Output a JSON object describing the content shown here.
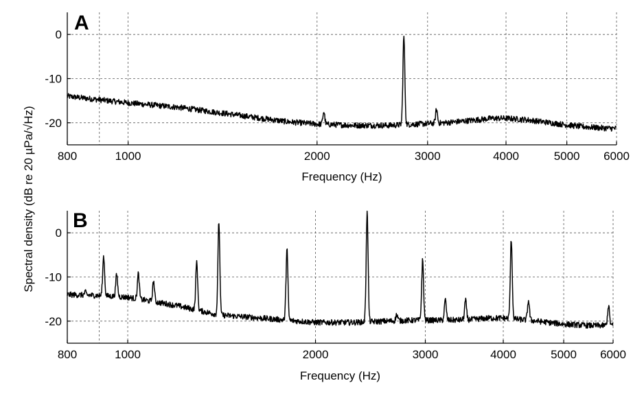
{
  "figure": {
    "ylabel": "Spectral density (dB re 20 µPa/√Hz)"
  },
  "chart_data": [
    {
      "type": "line",
      "panel": "A",
      "xlabel": "Frequency (Hz)",
      "x_scale": "log",
      "xlim": [
        800,
        6000
      ],
      "ylim": [
        -25,
        5
      ],
      "x_ticks": [
        800,
        1000,
        2000,
        3000,
        4000,
        5000,
        6000
      ],
      "x_tick_labels": [
        "800",
        "1000",
        "2000",
        "3000",
        "4000",
        "5000",
        "6000"
      ],
      "y_ticks": [
        0,
        -10,
        -20
      ],
      "y_tick_labels": [
        "0",
        "-10",
        "-20"
      ],
      "x_grid": [
        900,
        1000,
        2000,
        3000,
        4000,
        5000,
        6000
      ],
      "y_grid": [
        0,
        -10,
        -20
      ],
      "grid": true,
      "series": [
        {
          "baseline": {
            "x": [
              800,
              900,
              1000,
              1200,
              1500,
              1800,
              2000,
              2300,
              2600,
              2900,
              3200,
              3500,
              3800,
              4000,
              4300,
              4700,
              5200,
              5700,
              6000
            ],
            "y": [
              -14,
              -14.8,
              -15.5,
              -16.5,
              -18.3,
              -19.8,
              -20.3,
              -20.6,
              -20.6,
              -20.3,
              -20,
              -19.5,
              -19,
              -19,
              -19.3,
              -20,
              -20.8,
              -21.2,
              -21.3
            ]
          },
          "peaks": [
            {
              "x": 2050,
              "y": -17.5
            },
            {
              "x": 2750,
              "y": -0.5
            },
            {
              "x": 3100,
              "y": -17
            }
          ]
        }
      ]
    },
    {
      "type": "line",
      "panel": "B",
      "xlabel": "Frequency (Hz)",
      "x_scale": "log",
      "xlim": [
        800,
        6000
      ],
      "ylim": [
        -25,
        5
      ],
      "x_ticks": [
        800,
        1000,
        2000,
        3000,
        4000,
        5000,
        6000
      ],
      "x_tick_labels": [
        "800",
        "1000",
        "2000",
        "3000",
        "4000",
        "5000",
        "6000"
      ],
      "y_ticks": [
        0,
        -10,
        -20
      ],
      "y_tick_labels": [
        "0",
        "-10",
        "-20"
      ],
      "x_grid": [
        900,
        1000,
        2000,
        3000,
        4000,
        5000,
        6000
      ],
      "y_grid": [
        0,
        -10,
        -20
      ],
      "grid": true,
      "series": [
        {
          "baseline": {
            "x": [
              800,
              900,
              1000,
              1200,
              1400,
              1600,
              1800,
              2000,
              2300,
              2600,
              2900,
              3200,
              3500,
              3800,
              4000,
              4400,
              5000,
              5500,
              6000
            ],
            "y": [
              -14,
              -14.2,
              -14.6,
              -16.5,
              -18.6,
              -19.2,
              -19.8,
              -20.3,
              -20.3,
              -20,
              -19.8,
              -19.8,
              -19.7,
              -19.3,
              -19.3,
              -19.8,
              -20.7,
              -21,
              -21
            ]
          },
          "peaks": [
            {
              "x": 855,
              "y": -13.5
            },
            {
              "x": 915,
              "y": -5.3
            },
            {
              "x": 960,
              "y": -9.5
            },
            {
              "x": 1040,
              "y": -9.3
            },
            {
              "x": 1100,
              "y": -11
            },
            {
              "x": 1290,
              "y": -6.5
            },
            {
              "x": 1400,
              "y": 2.5
            },
            {
              "x": 1800,
              "y": -3.5
            },
            {
              "x": 2420,
              "y": 4.8
            },
            {
              "x": 2700,
              "y": -18.5
            },
            {
              "x": 2970,
              "y": -6.2
            },
            {
              "x": 3230,
              "y": -15.2
            },
            {
              "x": 3480,
              "y": -15.3
            },
            {
              "x": 4120,
              "y": -1.5
            },
            {
              "x": 4390,
              "y": -15.3
            },
            {
              "x": 5900,
              "y": -16.5
            }
          ]
        }
      ]
    }
  ]
}
